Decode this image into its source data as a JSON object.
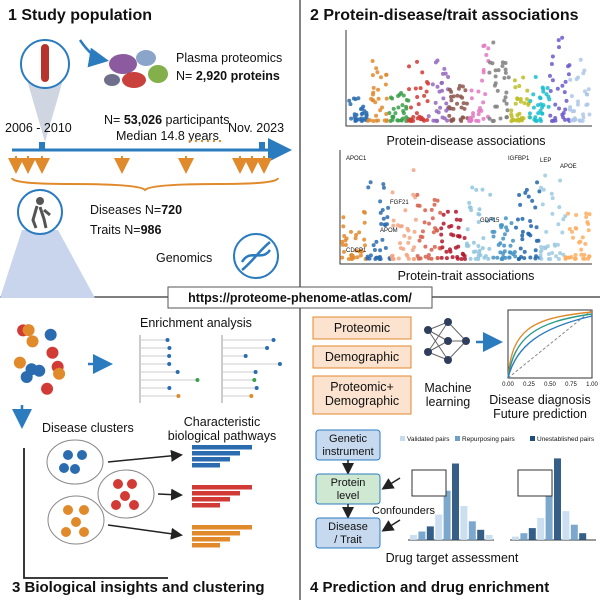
{
  "panel1": {
    "title": "1 Study population",
    "proteomics_label": "Plasma proteomics",
    "proteins_prefix": "N=",
    "proteins_count": "2,920 proteins",
    "period": "2006 - 2010",
    "participants_prefix": "N=",
    "participants_count": "53,026",
    "participants_label": "participants",
    "median_followup": "Median 14.8 years",
    "end_date": "Nov. 2023",
    "diseases_label": "Diseases N=",
    "diseases_count": "720",
    "traits_label": "Traits N=",
    "traits_count": "986",
    "genomics": "Genomics"
  },
  "panel2": {
    "title": "2 Protein-disease/trait associations",
    "disease_plot_caption": "Protein-disease associations",
    "trait_plot_caption": "Protein-trait associations",
    "trait_plot_genes": [
      "APOC1",
      "CDCP1",
      "FGF21",
      "APOM",
      "GDF15",
      "IGFBP1",
      "LEP",
      "APOE"
    ]
  },
  "url": "https://proteome-phenome-atlas.com/",
  "panel3": {
    "title": "3 Biological insights and clustering",
    "enrichment": "Enrichment analysis",
    "clusters": "Disease clusters",
    "pathways": [
      "Characteristic",
      "biological pathways"
    ]
  },
  "panel4": {
    "title": "4 Prediction and drug enrichment",
    "inputs": [
      "Proteomic",
      "Demographic"
    ],
    "combined_input": [
      "Proteomic+",
      "Demographic"
    ],
    "method": [
      "Machine",
      "learning"
    ],
    "outcomes": [
      "Disease diagnosis",
      "Future prediction"
    ],
    "roc_ticks": [
      "0.00",
      "0.25",
      "0.50",
      "0.75",
      "1.00"
    ],
    "legend": [
      "Validated pairs",
      "Repurposing pairs",
      "Unestablished pairs"
    ],
    "instrument": [
      "Genetic",
      "instrument"
    ],
    "protein": [
      "Protein",
      "level"
    ],
    "outcome": [
      "Disease",
      "/ Trait"
    ],
    "confounders": "Confounders",
    "assessment": "Drug target assessment"
  }
}
